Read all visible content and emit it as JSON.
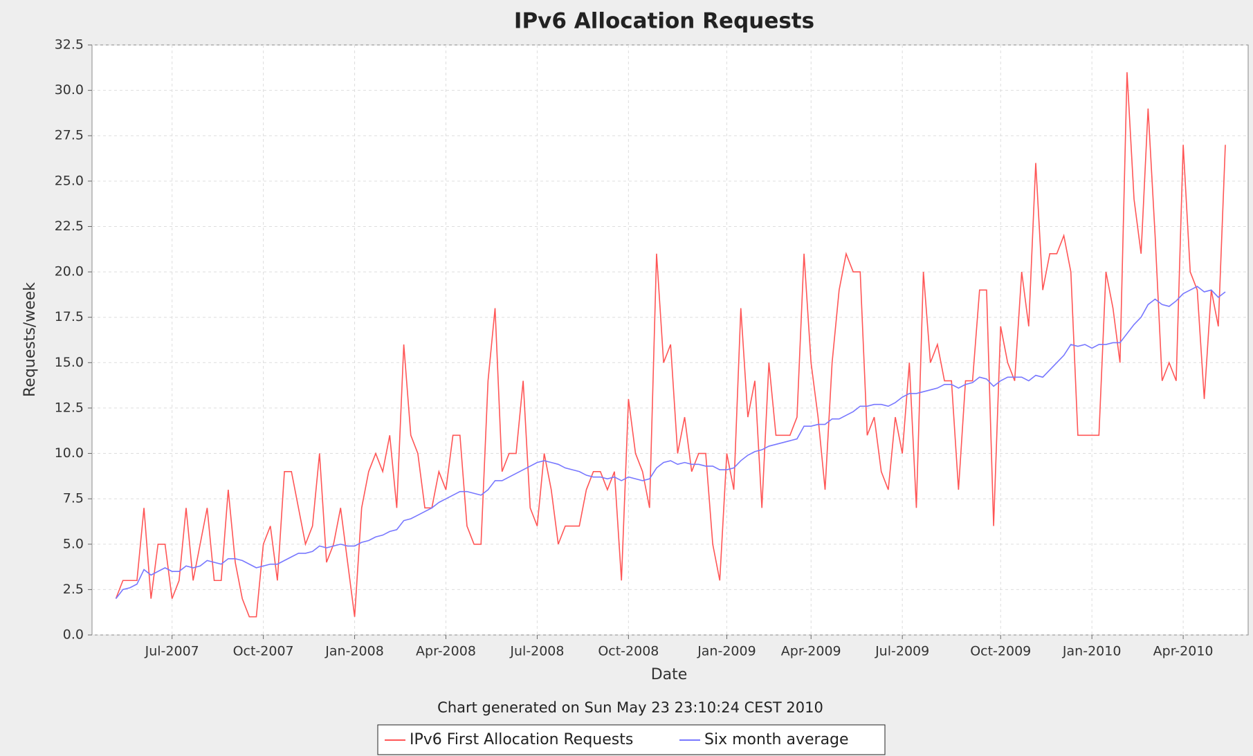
{
  "chart_data": {
    "type": "line",
    "title": "IPv6 Allocation Requests",
    "xlabel": "Date",
    "ylabel": "Requests/week",
    "subtitle": "Chart generated on Sun May 23 23:10:24 CEST 2010",
    "categories": [
      null,
      null,
      null,
      null,
      null,
      null,
      null,
      null,
      "Jul-2007",
      null,
      null,
      null,
      null,
      null,
      null,
      null,
      null,
      null,
      null,
      null,
      null,
      "Oct-2007",
      null,
      null,
      null,
      null,
      null,
      null,
      null,
      null,
      null,
      null,
      null,
      null,
      "Jan-2008",
      null,
      null,
      null,
      null,
      null,
      null,
      null,
      null,
      null,
      null,
      null,
      null,
      "Apr-2008",
      null,
      null,
      null,
      null,
      null,
      null,
      null,
      null,
      null,
      null,
      null,
      null,
      "Jul-2008",
      null,
      null,
      null,
      null,
      null,
      null,
      null,
      null,
      null,
      null,
      null,
      null,
      "Oct-2008",
      null,
      null,
      null,
      null,
      null,
      null,
      null,
      null,
      null,
      null,
      null,
      null,
      null,
      "Jan-2009",
      null,
      null,
      null,
      null,
      null,
      null,
      null,
      null,
      null,
      null,
      null,
      "Apr-2009",
      null,
      null,
      null,
      null,
      null,
      null,
      null,
      null,
      null,
      null,
      null,
      null,
      "Jul-2009",
      null,
      null,
      null,
      null,
      null,
      null,
      null,
      null,
      null,
      null,
      null,
      null,
      null,
      "Oct-2009",
      null,
      null,
      null,
      null,
      null,
      null,
      null,
      null,
      null,
      null,
      null,
      null,
      "Jan-2010",
      null,
      null,
      null,
      null,
      null,
      null,
      null,
      null,
      null,
      null,
      null,
      null,
      "Apr-2010",
      null,
      null,
      null,
      null,
      null,
      null
    ],
    "series": [
      {
        "name": "IPv6 First Allocation Requests",
        "color": "#ff5555",
        "values": [
          2,
          3,
          3,
          3,
          7,
          2,
          5,
          5,
          2,
          3,
          7,
          3,
          5,
          7,
          3,
          3,
          8,
          4,
          2,
          1,
          1,
          5,
          6,
          3,
          9,
          9,
          7,
          5,
          6,
          10,
          4,
          5,
          7,
          4,
          1,
          7,
          9,
          10,
          9,
          11,
          7,
          16,
          11,
          10,
          7,
          7,
          9,
          8,
          11,
          11,
          6,
          5,
          5,
          14,
          18,
          9,
          10,
          10,
          14,
          7,
          6,
          10,
          8,
          5,
          6,
          6,
          6,
          8,
          9,
          9,
          8,
          9,
          3,
          13,
          10,
          9,
          7,
          21,
          15,
          16,
          10,
          12,
          9,
          10,
          10,
          5,
          3,
          10,
          8,
          18,
          12,
          14,
          7,
          15,
          11,
          11,
          11,
          12,
          21,
          15,
          12,
          8,
          15,
          19,
          21,
          20,
          20,
          11,
          12,
          9,
          8,
          12,
          10,
          15,
          7,
          20,
          15,
          16,
          14,
          14,
          8,
          14,
          14,
          19,
          19,
          6,
          17,
          15,
          14,
          20,
          17,
          26,
          19,
          21,
          21,
          22,
          20,
          11,
          11,
          11,
          11,
          20,
          18,
          15,
          31,
          24,
          21,
          29,
          22,
          14,
          15,
          14,
          27,
          20,
          19,
          13,
          19,
          17,
          27
        ]
      },
      {
        "name": "Six month average",
        "color": "#7777ff",
        "values": [
          2,
          2.5,
          2.6,
          2.8,
          3.6,
          3.3,
          3.5,
          3.7,
          3.5,
          3.5,
          3.8,
          3.7,
          3.8,
          4.1,
          4.0,
          3.9,
          4.2,
          4.2,
          4.1,
          3.9,
          3.7,
          3.8,
          3.9,
          3.9,
          4.1,
          4.3,
          4.5,
          4.5,
          4.6,
          4.9,
          4.8,
          4.9,
          5.0,
          4.9,
          4.9,
          5.1,
          5.2,
          5.4,
          5.5,
          5.7,
          5.8,
          6.3,
          6.4,
          6.6,
          6.8,
          7.0,
          7.3,
          7.5,
          7.7,
          7.9,
          7.9,
          7.8,
          7.7,
          8.0,
          8.5,
          8.5,
          8.7,
          8.9,
          9.1,
          9.3,
          9.5,
          9.6,
          9.5,
          9.4,
          9.2,
          9.1,
          9.0,
          8.8,
          8.7,
          8.7,
          8.6,
          8.7,
          8.5,
          8.7,
          8.6,
          8.5,
          8.6,
          9.2,
          9.5,
          9.6,
          9.4,
          9.5,
          9.4,
          9.4,
          9.3,
          9.3,
          9.1,
          9.1,
          9.2,
          9.6,
          9.9,
          10.1,
          10.2,
          10.4,
          10.5,
          10.6,
          10.7,
          10.8,
          11.5,
          11.5,
          11.6,
          11.6,
          11.9,
          11.9,
          12.1,
          12.3,
          12.6,
          12.6,
          12.7,
          12.7,
          12.6,
          12.8,
          13.1,
          13.3,
          13.3,
          13.4,
          13.5,
          13.6,
          13.8,
          13.8,
          13.6,
          13.8,
          13.9,
          14.2,
          14.1,
          13.7,
          14.0,
          14.2,
          14.2,
          14.2,
          14.0,
          14.3,
          14.2,
          14.6,
          15.0,
          15.4,
          16.0,
          15.9,
          16.0,
          15.8,
          16.0,
          16.0,
          16.1,
          16.1,
          16.6,
          17.1,
          17.5,
          18.2,
          18.5,
          18.2,
          18.1,
          18.4,
          18.8,
          19.0,
          19.2,
          18.9,
          19.0,
          18.6,
          18.9
        ]
      }
    ],
    "ylim": [
      0,
      32.5
    ],
    "yticks": [
      {
        "value": 0,
        "label": "0.0"
      },
      2.5,
      {
        "value": 5,
        "label": "5.0"
      },
      7.5,
      {
        "value": 10,
        "label": "10.0"
      },
      12.5,
      {
        "value": 15,
        "label": "15.0"
      },
      17.5,
      {
        "value": 20,
        "label": "20.0"
      },
      22.5,
      {
        "value": 25,
        "label": "25.0"
      },
      27.5,
      {
        "value": 30,
        "label": "30.0"
      },
      32.5
    ],
    "grid": true,
    "legend": "bottom"
  }
}
